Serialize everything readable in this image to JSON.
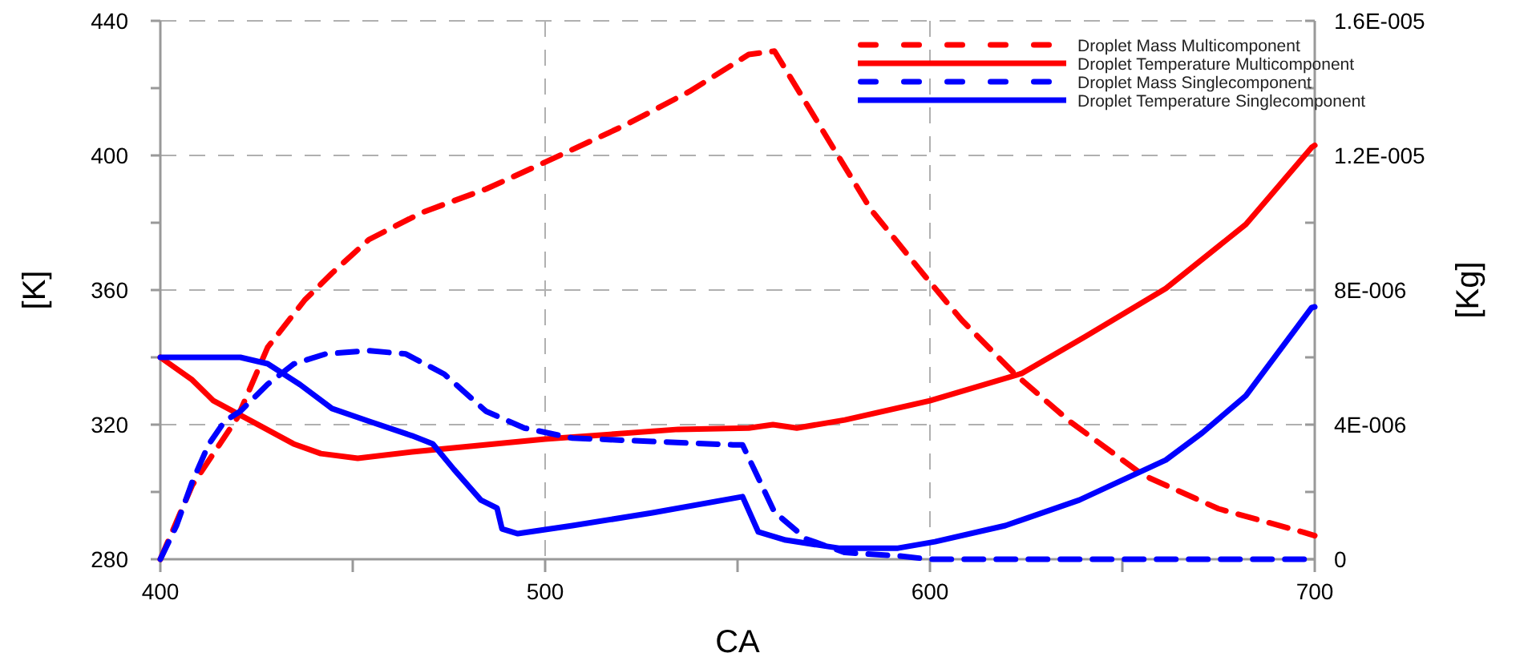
{
  "chart_data": {
    "type": "line",
    "xlabel": "CA",
    "ylabel": "[K]",
    "y2label": "[Kg]",
    "xlim": [
      400,
      700
    ],
    "xticks": [
      400,
      {
        "value": 450,
        "label": null
      },
      500,
      {
        "value": 550,
        "label": null
      },
      600,
      {
        "value": 650,
        "label": null
      },
      700
    ],
    "ylim": [
      280,
      440
    ],
    "yticks": [
      280,
      {
        "value": 300,
        "label": null
      },
      320,
      {
        "value": 340,
        "label": null
      },
      360,
      {
        "value": 380,
        "label": null
      },
      400,
      {
        "value": 420,
        "label": null
      },
      440
    ],
    "y2lim": [
      0,
      1.6e-05
    ],
    "y2ticks": [
      0,
      {
        "value": 2e-06,
        "label": null
      },
      {
        "value": 4e-06,
        "label": "4E-006"
      },
      {
        "value": 6e-06,
        "label": null
      },
      {
        "value": 8e-06,
        "label": "8E-006"
      },
      {
        "value": 1e-05,
        "label": null
      },
      {
        "value": 1.2e-05,
        "label": "1.2E-005"
      },
      {
        "value": 1.4e-05,
        "label": null
      },
      {
        "value": 1.6e-05,
        "label": "1.6E-005"
      }
    ],
    "grid": true,
    "legend": "top right",
    "marker": "none",
    "series": [
      {
        "name": "Droplet Mass Multicomponent",
        "color": "#ff0000",
        "axis": "y2",
        "line_style": "dashed",
        "x": [
          400,
          408.3,
          420,
          427.9,
          437.5,
          444.6,
          454.2,
          467.9,
          484.6,
          500,
          520.8,
          537.5,
          552.9,
          559.6,
          575,
          584.6,
          598.8,
          608.3,
          622.1,
          636.3,
          655.4,
          675,
          697.1,
          700
        ],
        "values": [
          0,
          2.2e-06,
          4.2e-06,
          6.3e-06,
          7.7e-06,
          8.5e-06,
          9.5e-06,
          1.03e-05,
          1.1e-05,
          1.18e-05,
          1.29e-05,
          1.39e-05,
          1.5e-05,
          1.51e-05,
          1.22e-05,
          1.04e-05,
          8.4e-06,
          7.1e-06,
          5.5e-06,
          4.1e-06,
          2.5e-06,
          1.5e-06,
          8e-07,
          7e-07
        ]
      },
      {
        "name": "Droplet Temperature Multicomponent",
        "color": "#ff0000",
        "line_style": "solid",
        "x": [
          400,
          408.3,
          413.8,
          423.8,
          434.6,
          441.7,
          451.3,
          465.4,
          500,
          534.6,
          552.9,
          559.2,
          565.4,
          577.9,
          600,
          623.8,
          640.4,
          661.3,
          682.1,
          699.2,
          700
        ],
        "values": [
          340,
          333.3,
          327.1,
          321,
          314.3,
          311.4,
          310,
          311.9,
          315.7,
          318.6,
          319,
          320,
          319,
          321.4,
          327.1,
          335.2,
          346.2,
          360.5,
          379.5,
          402.4,
          403
        ]
      },
      {
        "name": "Droplet Mass Singlecomponent",
        "color": "#0000ff",
        "axis": "y2",
        "line_style": "dashed",
        "x": [
          400,
          404.2,
          408.3,
          412.5,
          416.7,
          420.8,
          427.9,
          434.6,
          442.9,
          454.2,
          463.8,
          473.8,
          484.6,
          494.6,
          507.1,
          527.9,
          548.8,
          551.3,
          554.2,
          559.6,
          567.9,
          577.9,
          591.7,
          600,
          700
        ],
        "values": [
          0,
          1e-06,
          2.3e-06,
          3.4e-06,
          4.1e-06,
          4.4e-06,
          5.2e-06,
          5.8e-06,
          6.1e-06,
          6.2e-06,
          6.1e-06,
          5.5e-06,
          4.4e-06,
          3.9e-06,
          3.6e-06,
          3.5e-06,
          3.4e-06,
          3.4e-06,
          2.7e-06,
          1.4e-06,
          6e-07,
          2e-07,
          1e-07,
          0,
          0
        ]
      },
      {
        "name": "Droplet Temperature Singlecomponent",
        "color": "#0000ff",
        "line_style": "solid",
        "x": [
          400,
          420.8,
          427.9,
          436.3,
          444.6,
          454.2,
          465.4,
          470.8,
          476.3,
          483.3,
          487.5,
          488.8,
          492.9,
          507.1,
          527.9,
          551.3,
          555.4,
          562.5,
          576.3,
          591.7,
          601.3,
          619.6,
          638.8,
          661.3,
          670.8,
          682.1,
          699.2,
          700
        ],
        "values": [
          340,
          340,
          338.1,
          331.9,
          324.8,
          321,
          316.7,
          314.3,
          306.7,
          297.6,
          295.2,
          289,
          287.6,
          290,
          293.8,
          298.6,
          288.1,
          285.7,
          283.3,
          283.3,
          285.2,
          290,
          297.6,
          309.5,
          317.6,
          328.6,
          354.8,
          355
        ]
      }
    ]
  }
}
